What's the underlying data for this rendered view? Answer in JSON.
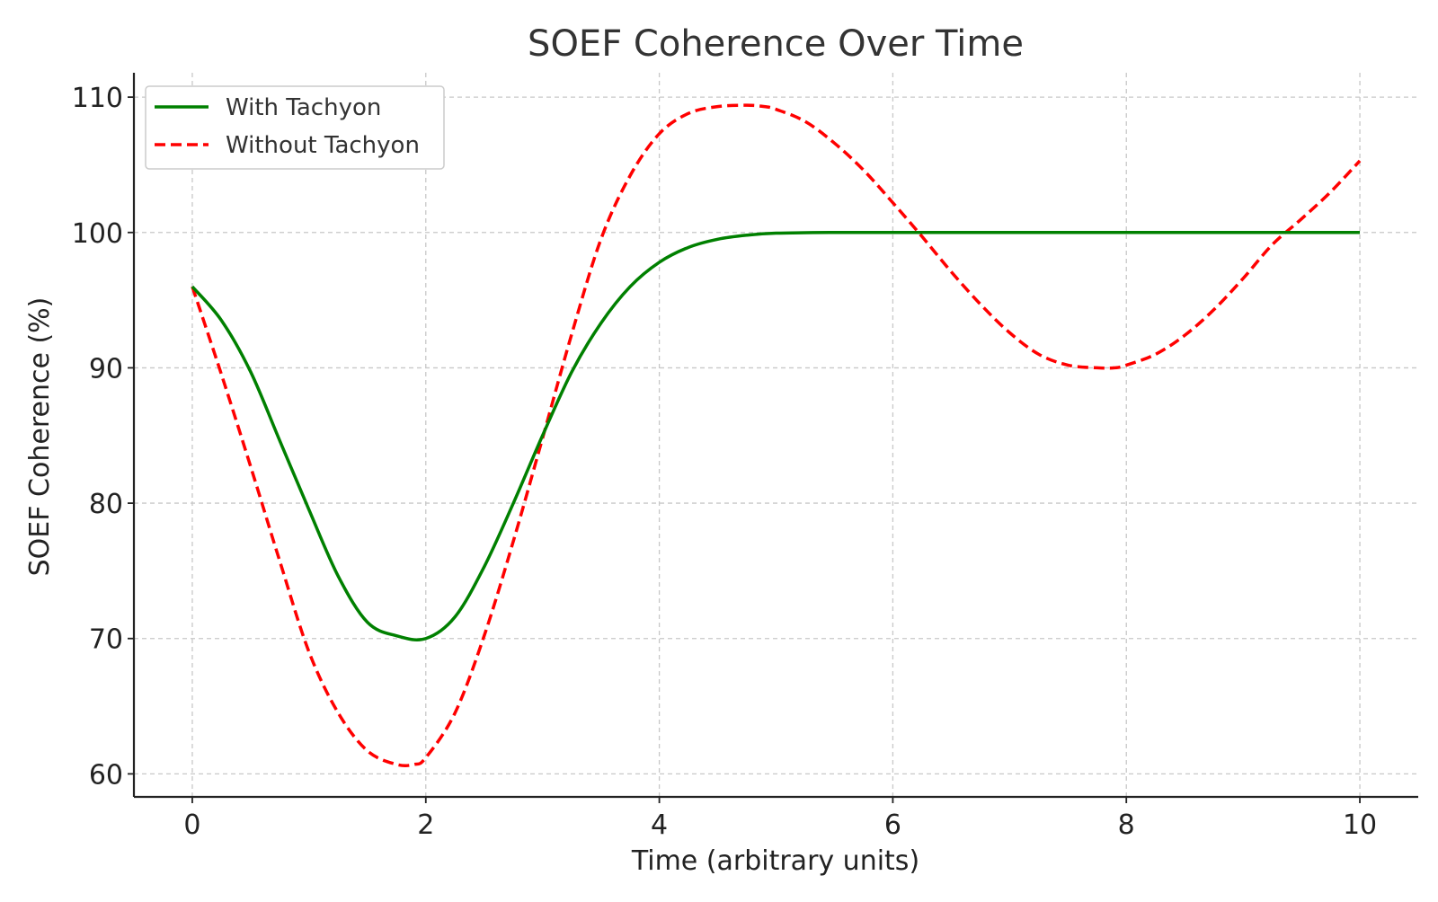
{
  "chart_data": {
    "type": "line",
    "title": "SOEF Coherence Over Time",
    "xlabel": "Time (arbitrary units)",
    "ylabel": "SOEF Coherence (%)",
    "xlim": [
      -0.5,
      10.5
    ],
    "ylim": [
      58.3,
      111.8
    ],
    "xticks": [
      0,
      2,
      4,
      6,
      8,
      10
    ],
    "yticks": [
      60,
      70,
      80,
      90,
      100,
      110
    ],
    "xtick_labels": [
      "0",
      "2",
      "4",
      "6",
      "8",
      "10"
    ],
    "ytick_labels": [
      "60",
      "70",
      "80",
      "90",
      "100",
      "110"
    ],
    "grid": true,
    "legend_position": "top-left",
    "series": [
      {
        "name": "With Tachyon",
        "color": "#008000",
        "dash": "solid",
        "x": [
          0,
          0.25,
          0.5,
          0.75,
          1.0,
          1.25,
          1.5,
          1.75,
          2.0,
          2.25,
          2.5,
          2.75,
          3.0,
          3.25,
          3.5,
          3.75,
          4.0,
          4.25,
          4.5,
          4.75,
          5.0,
          5.5,
          6.0,
          7.0,
          8.0,
          9.0,
          10.0
        ],
        "y": [
          96,
          93.5,
          89.7,
          84.6,
          79.5,
          74.6,
          71.2,
          70.2,
          70.0,
          71.6,
          75.3,
          80.0,
          85.0,
          89.7,
          93.3,
          96.0,
          97.8,
          98.9,
          99.5,
          99.8,
          99.95,
          100,
          100,
          100,
          100,
          100,
          100
        ]
      },
      {
        "name": "Without Tachyon",
        "color": "#ff0000",
        "dash": "dashed",
        "x": [
          0,
          0.25,
          0.5,
          0.75,
          1.0,
          1.25,
          1.5,
          1.75,
          1.9,
          2.0,
          2.25,
          2.5,
          2.75,
          3.0,
          3.25,
          3.5,
          3.75,
          4.0,
          4.25,
          4.5,
          4.75,
          4.9,
          5.0,
          5.25,
          5.5,
          5.75,
          6.0,
          6.25,
          6.5,
          6.75,
          7.0,
          7.25,
          7.5,
          7.75,
          7.9,
          8.0,
          8.25,
          8.5,
          8.75,
          9.0,
          9.25,
          9.5,
          9.75,
          10.0
        ],
        "y": [
          96,
          89.5,
          82.7,
          75.7,
          69.0,
          64.5,
          61.7,
          60.7,
          60.7,
          61.2,
          64.5,
          70.2,
          77.2,
          84.8,
          92.5,
          99.5,
          104.2,
          107.3,
          108.8,
          109.3,
          109.4,
          109.3,
          109.1,
          108.2,
          106.6,
          104.6,
          102.2,
          99.7,
          97.1,
          94.7,
          92.6,
          91.0,
          90.2,
          90.0,
          90.0,
          90.2,
          91.0,
          92.4,
          94.3,
          96.6,
          99.1,
          101.0,
          103.0,
          105.3
        ]
      }
    ]
  }
}
